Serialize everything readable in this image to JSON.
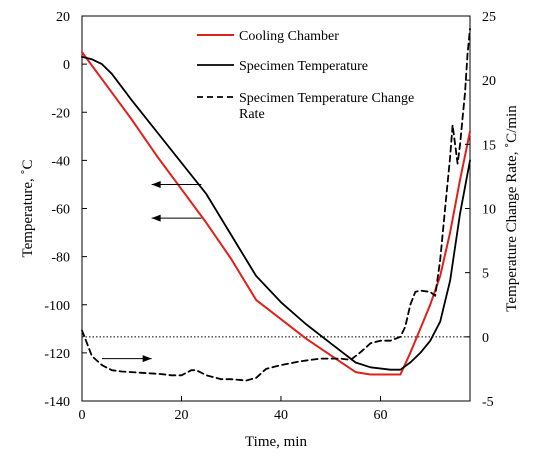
{
  "chart_data": {
    "type": "line",
    "xlabel": "Time, min",
    "ylabel_left": "Temperature, ˚C",
    "ylabel_right": "Temperature Change Rate, ˚C/min",
    "xlim": [
      0,
      78
    ],
    "ylim_left": [
      -140,
      20
    ],
    "ylim_right": [
      -5,
      25
    ],
    "x_ticks": [
      0,
      20,
      40,
      60
    ],
    "y_left_ticks": [
      20,
      0,
      -20,
      -40,
      -60,
      -80,
      -100,
      -120,
      -140
    ],
    "y_right_ticks": [
      25,
      20,
      15,
      10,
      5,
      0,
      -5
    ],
    "grid": false,
    "legend_position": "top-center",
    "reference_line": {
      "axis": "right",
      "y": 0,
      "style": "dotted"
    },
    "series": [
      {
        "name": "Cooling Chamber",
        "axis": "left",
        "color": "#e0201b",
        "style": "solid",
        "points": [
          [
            0,
            5
          ],
          [
            5,
            -9
          ],
          [
            10,
            -23
          ],
          [
            15,
            -38
          ],
          [
            20,
            -52
          ],
          [
            25,
            -66
          ],
          [
            30,
            -81
          ],
          [
            35,
            -98
          ],
          [
            40,
            -106
          ],
          [
            45,
            -114
          ],
          [
            50,
            -121
          ],
          [
            55,
            -128
          ],
          [
            58,
            -129
          ],
          [
            62,
            -129
          ],
          [
            64,
            -129
          ],
          [
            66,
            -120
          ],
          [
            68,
            -110
          ],
          [
            70,
            -100
          ],
          [
            72,
            -88
          ],
          [
            74,
            -70
          ],
          [
            76,
            -48
          ],
          [
            78,
            -28
          ]
        ]
      },
      {
        "name": "Specimen Temperature",
        "axis": "left",
        "color": "#000000",
        "style": "solid",
        "points": [
          [
            0,
            3
          ],
          [
            2,
            2
          ],
          [
            4,
            0
          ],
          [
            6,
            -4
          ],
          [
            10,
            -15
          ],
          [
            15,
            -28
          ],
          [
            20,
            -41
          ],
          [
            25,
            -54
          ],
          [
            30,
            -71
          ],
          [
            35,
            -88
          ],
          [
            40,
            -99
          ],
          [
            45,
            -108
          ],
          [
            50,
            -116
          ],
          [
            55,
            -124
          ],
          [
            58,
            -126
          ],
          [
            62,
            -127
          ],
          [
            64,
            -127
          ],
          [
            66,
            -124
          ],
          [
            68,
            -120
          ],
          [
            70,
            -115
          ],
          [
            72,
            -107
          ],
          [
            74,
            -90
          ],
          [
            76,
            -62
          ],
          [
            78,
            -40
          ]
        ]
      },
      {
        "name": "Specimen Temperature Change Rate",
        "axis": "right",
        "color": "#000000",
        "style": "dashed",
        "points": [
          [
            0,
            0.5
          ],
          [
            1,
            -0.5
          ],
          [
            2,
            -1.5
          ],
          [
            4,
            -2.2
          ],
          [
            6,
            -2.6
          ],
          [
            8,
            -2.7
          ],
          [
            12,
            -2.8
          ],
          [
            16,
            -2.9
          ],
          [
            18,
            -3.0
          ],
          [
            20,
            -3.0
          ],
          [
            22,
            -2.6
          ],
          [
            23,
            -2.6
          ],
          [
            25,
            -3.0
          ],
          [
            28,
            -3.3
          ],
          [
            30,
            -3.3
          ],
          [
            33,
            -3.4
          ],
          [
            35,
            -3.2
          ],
          [
            37,
            -2.5
          ],
          [
            40,
            -2.2
          ],
          [
            44,
            -1.9
          ],
          [
            48,
            -1.7
          ],
          [
            52,
            -1.7
          ],
          [
            54,
            -1.8
          ],
          [
            56,
            -1.2
          ],
          [
            58,
            -0.5
          ],
          [
            60,
            -0.3
          ],
          [
            62,
            -0.3
          ],
          [
            64,
            0.0
          ],
          [
            65,
            0.8
          ],
          [
            66,
            2.5
          ],
          [
            67,
            3.5
          ],
          [
            68,
            3.6
          ],
          [
            70,
            3.5
          ],
          [
            71,
            3.2
          ],
          [
            72,
            6
          ],
          [
            73,
            10
          ],
          [
            74,
            14
          ],
          [
            74.5,
            16.5
          ],
          [
            75,
            15
          ],
          [
            75.5,
            13.5
          ],
          [
            76,
            15
          ],
          [
            76.5,
            17
          ],
          [
            77,
            19
          ],
          [
            77.5,
            22
          ],
          [
            78,
            24
          ]
        ]
      }
    ],
    "annotations": [
      {
        "type": "arrow",
        "direction": "left",
        "axis": "left",
        "from": [
          24,
          -50
        ],
        "to": [
          14,
          -50
        ]
      },
      {
        "type": "arrow",
        "direction": "left",
        "axis": "left",
        "from": [
          24,
          -64
        ],
        "to": [
          14,
          -64
        ]
      },
      {
        "type": "arrow",
        "direction": "right",
        "axis": "right",
        "from": [
          4,
          -1.7
        ],
        "to": [
          14,
          -1.7
        ]
      }
    ]
  }
}
